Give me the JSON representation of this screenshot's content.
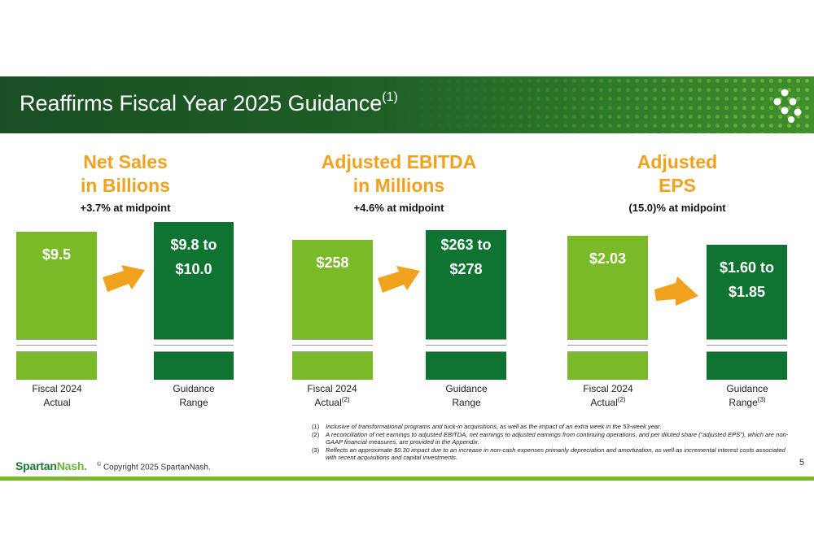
{
  "header": {
    "title": "Reaffirms Fiscal Year 2025 Guidance",
    "title_note": "(1)"
  },
  "columns": [
    {
      "title_line1": "Net Sales",
      "title_line2": "in Billions",
      "midpoint": "+3.7% at midpoint",
      "actual": {
        "value": "$9.5",
        "label_line1": "Fiscal 2024",
        "label_line2": "Actual",
        "note": ""
      },
      "guidance": {
        "value_line1": "$9.8 to",
        "value_line2": "$10.0",
        "label_line1": "Guidance",
        "label_line2": "Range",
        "note": ""
      }
    },
    {
      "title_line1": "Adjusted EBITDA",
      "title_line2": "in Millions",
      "midpoint": "+4.6% at midpoint",
      "actual": {
        "value": "$258",
        "label_line1": "Fiscal 2024",
        "label_line2": "Actual",
        "note": "(2)"
      },
      "guidance": {
        "value_line1": "$263 to",
        "value_line2": "$278",
        "label_line1": "Guidance",
        "label_line2": "Range",
        "note": ""
      }
    },
    {
      "title_line1": "Adjusted",
      "title_line2": "EPS",
      "midpoint": "(15.0)% at midpoint",
      "actual": {
        "value": "$2.03",
        "label_line1": "Fiscal 2024",
        "label_line2": "Actual",
        "note": "(2)"
      },
      "guidance": {
        "value_line1": "$1.60 to",
        "value_line2": "$1.85",
        "label_line1": "Guidance",
        "label_line2": "Range",
        "note": "(3)"
      }
    }
  ],
  "footnotes": [
    {
      "num": "(1)",
      "text": "Inclusive of transformational programs and tuck-in acquisitions, as well as the impact of an extra week in the 53-week year."
    },
    {
      "num": "(2)",
      "text": "A reconciliation of net earnings to adjusted EBITDA, net earnings to adjusted earnings from continuing operations, and per diluted share (“adjusted EPS”), which are non-GAAP financial measures, are provided in the Appendix."
    },
    {
      "num": "(3)",
      "text": "Reflects an approximate $0.30 impact due to an increase in non-cash expenses primarily depreciation and amortization, as well as incremental interest costs associated with recent acquisitions and capital investments."
    }
  ],
  "footer": {
    "brand_part1": "Spartan",
    "brand_part2": "Nash",
    "brand_mark": ".",
    "copyright_symbol": "©",
    "copyright": " Copyright 2025 SpartanNash.",
    "page_number": "5"
  },
  "colors": {
    "accent_orange": "#f0a21f",
    "bar_light_green": "#7aba28",
    "bar_dark_green": "#0f7431",
    "header_green": "#1f5e27"
  },
  "icons": [
    "spartannash-dots-logo-icon",
    "arrow-right-icon"
  ]
}
